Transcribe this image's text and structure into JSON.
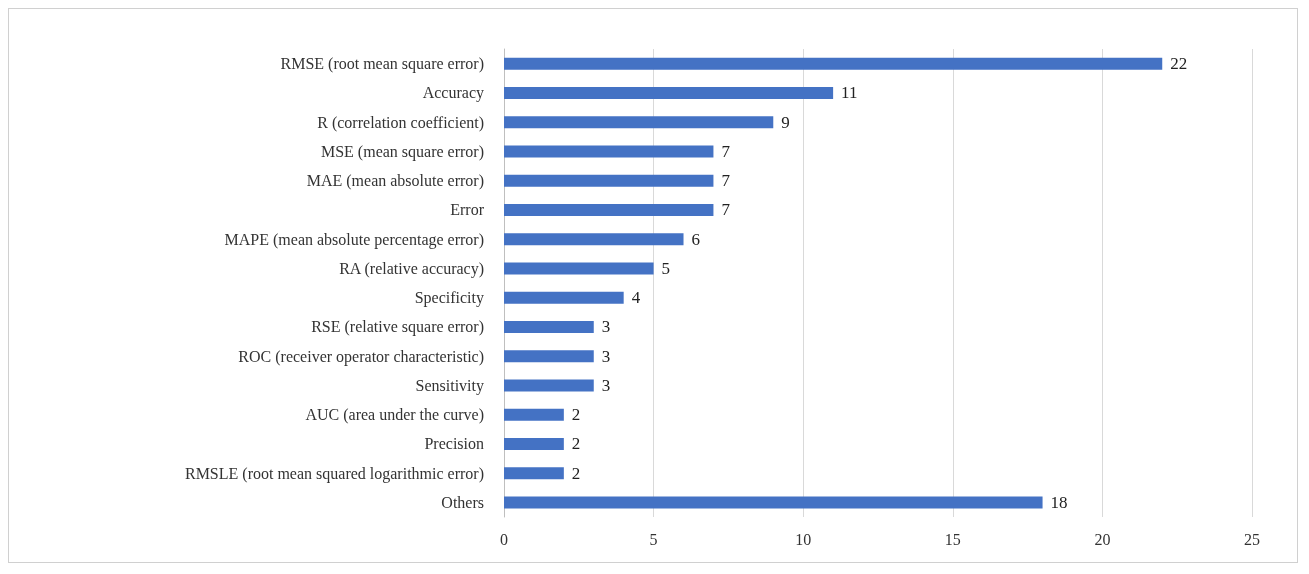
{
  "chart_data": {
    "type": "bar",
    "orientation": "horizontal",
    "categories": [
      "RMSE (root mean square error)",
      "Accuracy",
      "R (correlation coefficient)",
      "MSE (mean square error)",
      "MAE (mean absolute error)",
      "Error",
      "MAPE (mean absolute percentage error)",
      "RA (relative accuracy)",
      "Specificity",
      "RSE (relative square error)",
      "ROC (receiver operator characteristic)",
      "Sensitivity",
      "AUC (area under the curve)",
      "Precision",
      "RMSLE (root mean squared logarithmic error)",
      "Others"
    ],
    "values": [
      22,
      11,
      9,
      7,
      7,
      7,
      6,
      5,
      4,
      3,
      3,
      3,
      2,
      2,
      2,
      18
    ],
    "color": "#4472c4",
    "xlim": [
      0,
      25
    ],
    "xticks": [
      0,
      5,
      10,
      15,
      20,
      25
    ],
    "grid": "x",
    "data_labels": true
  }
}
